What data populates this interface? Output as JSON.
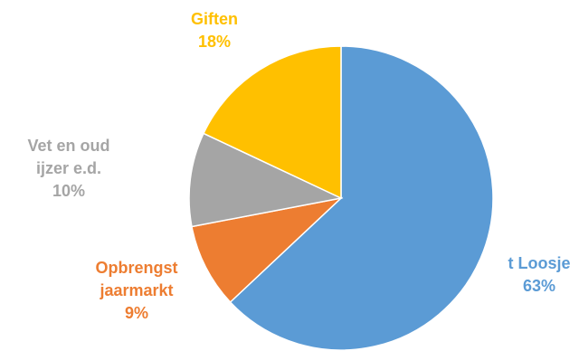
{
  "chart_data": {
    "type": "pie",
    "title": "",
    "slices": [
      {
        "label_lines": [
          "t Loosje"
        ],
        "pct_text": "63%",
        "value": 63,
        "color": "#5b9bd5"
      },
      {
        "label_lines": [
          "Opbrengst",
          "jaarmarkt"
        ],
        "pct_text": "9%",
        "value": 9,
        "color": "#ed7d31"
      },
      {
        "label_lines": [
          "Vet en oud",
          "ijzer e.d."
        ],
        "pct_text": "10%",
        "value": 10,
        "color": "#a5a5a5"
      },
      {
        "label_lines": [
          "Giften"
        ],
        "pct_text": "18%",
        "value": 18,
        "color": "#ffc000"
      }
    ],
    "start": "12 o'clock",
    "direction": "clockwise",
    "legend": "none"
  }
}
